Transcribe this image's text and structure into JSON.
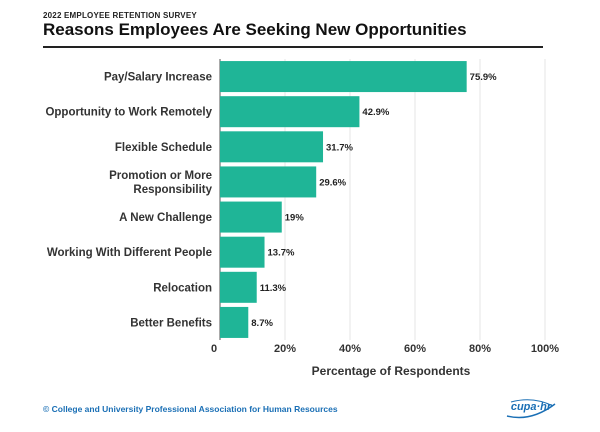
{
  "header": {
    "survey_label": "2022 EMPLOYEE RETENTION SURVEY",
    "title": "Reasons Employees Are Seeking New Opportunities"
  },
  "footer": {
    "copyright": "© College and University Professional Association for Human Resources",
    "logo_text": "cupa·hr"
  },
  "colors": {
    "bar": "#1fb597",
    "logo": "#1a6fb5"
  },
  "chart_data": {
    "type": "bar",
    "orientation": "horizontal",
    "title": "Reasons Employees Are Seeking New Opportunities",
    "xlabel": "Percentage of Respondents",
    "ylabel": "",
    "xlim": [
      0,
      100
    ],
    "ticks": [
      0,
      20,
      40,
      60,
      80,
      100
    ],
    "tick_labels": [
      "0",
      "20%",
      "40%",
      "60%",
      "80%",
      "100%"
    ],
    "grid": true,
    "categories": [
      [
        "Pay/Salary Increase"
      ],
      [
        "Opportunity to Work Remotely"
      ],
      [
        "Flexible Schedule"
      ],
      [
        "Promotion or More",
        "Responsibility"
      ],
      [
        "A New Challenge"
      ],
      [
        "Working With Different People"
      ],
      [
        "Relocation"
      ],
      [
        "Better Benefits"
      ]
    ],
    "values": [
      75.9,
      42.9,
      31.7,
      29.6,
      19,
      13.7,
      11.3,
      8.7
    ],
    "value_labels": [
      "75.9%",
      "42.9%",
      "31.7%",
      "29.6%",
      "19%",
      "13.7%",
      "11.3%",
      "8.7%"
    ]
  }
}
